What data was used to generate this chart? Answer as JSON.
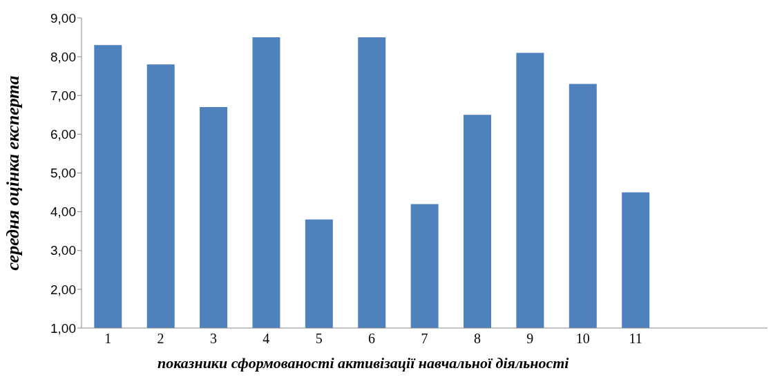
{
  "chart_data": {
    "type": "bar",
    "xlabel": "показники сформованості активізації навчальної діяльності",
    "ylabel": "середня оцінка експерта",
    "categories": [
      "1",
      "2",
      "3",
      "4",
      "5",
      "6",
      "7",
      "8",
      "9",
      "10",
      "11",
      null,
      null
    ],
    "values": [
      8.3,
      7.8,
      6.7,
      8.5,
      3.8,
      8.5,
      4.2,
      6.5,
      8.1,
      7.3,
      4.5,
      null,
      null
    ],
    "color": "#4f81bd",
    "ylim": [
      1,
      9
    ],
    "yticks": [
      {
        "value": 1,
        "label": "1,00"
      },
      {
        "value": 2,
        "label": "2,00"
      },
      {
        "value": 3,
        "label": "3,00"
      },
      {
        "value": 4,
        "label": "4,00"
      },
      {
        "value": 5,
        "label": "5,00"
      },
      {
        "value": 6,
        "label": "6,00"
      },
      {
        "value": 7,
        "label": "7,00"
      },
      {
        "value": 8,
        "label": "8,00"
      },
      {
        "value": 9,
        "label": "9,00"
      }
    ],
    "grid": false,
    "legend": false
  }
}
